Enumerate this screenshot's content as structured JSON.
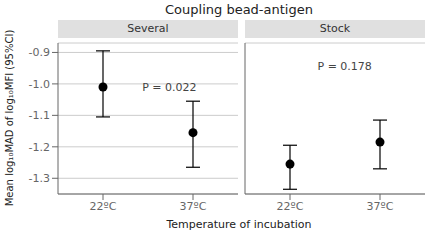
{
  "chart_data": [
    {
      "type": "scatter",
      "title": "Coupling bead-antigen",
      "subtitle": "Several",
      "xlabel": "Temperature of incubation",
      "ylabel": "Mean log₁₀MAD of log₁₀MFI (95%CI)",
      "x": [
        0,
        1
      ],
      "values": [
        -1.01,
        -1.155
      ],
      "ci_low": [
        -1.105,
        -1.265
      ],
      "ci_high": [
        -0.895,
        -1.055
      ],
      "xlim": [
        -0.5,
        1.5
      ],
      "xticks": [
        {
          "value": 0,
          "label": "22ºC"
        },
        {
          "value": 1,
          "label": "37ºC"
        }
      ],
      "ylim": [
        -1.35,
        -0.87
      ],
      "yticks": [
        -1.3,
        -1.2,
        -1.1,
        {
          "value": -1.0,
          "label": "-1.0"
        },
        -0.9
      ],
      "grid": true,
      "color": "#000000",
      "marker": "circle",
      "annotations": [
        {
          "text": "P = 0.022",
          "x": 0.38,
          "y": -1.01
        }
      ]
    },
    {
      "type": "scatter",
      "subtitle": "Stock",
      "x": [
        0,
        1
      ],
      "values": [
        -1.255,
        -1.185
      ],
      "ci_low": [
        -1.335,
        -1.27
      ],
      "ci_high": [
        -1.195,
        -1.115
      ],
      "xlim": [
        -0.5,
        1.5
      ],
      "xticks": [
        {
          "value": 0,
          "label": "22ºC"
        },
        {
          "value": 1,
          "label": "37ºC"
        }
      ],
      "ylim": [
        -1.35,
        -0.87
      ],
      "yticks": [
        -1.3,
        -1.2,
        -1.1,
        {
          "value": -1.0,
          "label": "-1.0"
        },
        -0.9
      ],
      "tick_labels": "x",
      "grid": true,
      "color": "#000000",
      "marker": "circle",
      "annotations": [
        {
          "text": "P = 0.178",
          "x": 0.25,
          "y": -0.945
        }
      ]
    }
  ]
}
